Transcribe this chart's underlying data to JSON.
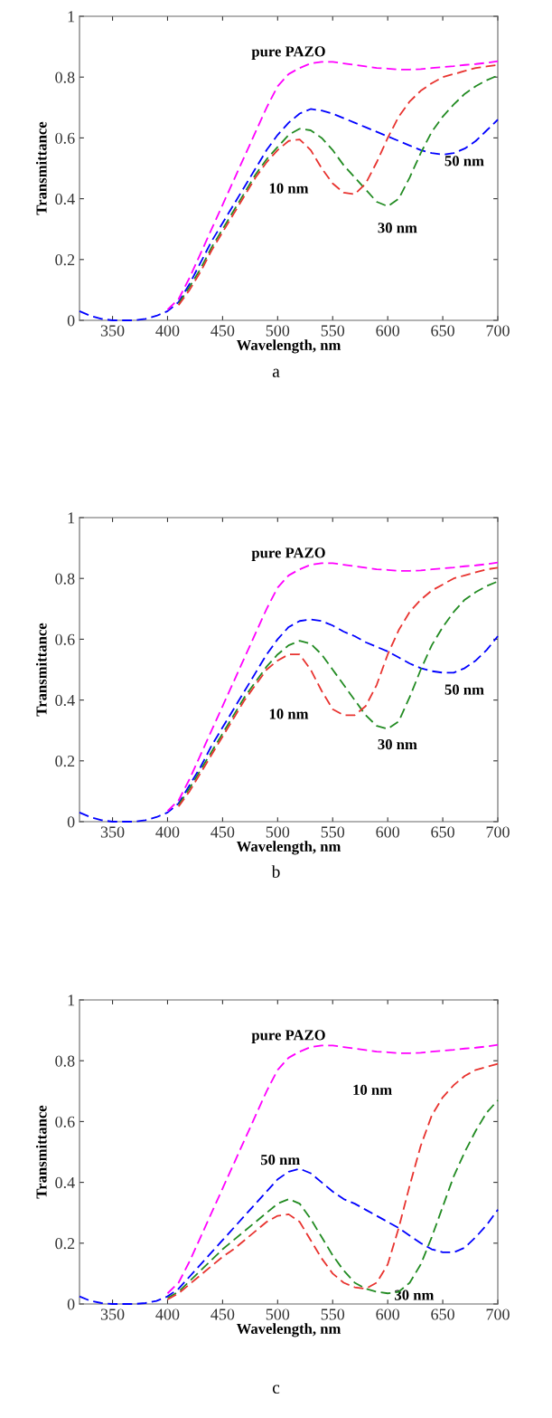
{
  "chart_data": [
    {
      "type": "line",
      "xlabel": "Wavelength, nm",
      "ylabel": "Transmittance",
      "line_style": "dashed",
      "grid": false,
      "xlim": [
        320,
        700
      ],
      "ylim": [
        0,
        1
      ],
      "xticks": [
        350,
        400,
        450,
        500,
        550,
        600,
        650,
        700
      ],
      "yticks": [
        0,
        0.2,
        0.4,
        0.6,
        0.8,
        1
      ],
      "x": [
        320,
        330,
        340,
        350,
        360,
        370,
        380,
        390,
        400,
        410,
        420,
        430,
        440,
        450,
        460,
        470,
        480,
        490,
        500,
        510,
        520,
        530,
        540,
        550,
        560,
        570,
        580,
        590,
        600,
        610,
        620,
        630,
        640,
        650,
        660,
        670,
        680,
        690,
        700
      ],
      "series": [
        {
          "color": "#ff00ff",
          "values": [
            null,
            null,
            null,
            null,
            null,
            null,
            null,
            null,
            0.035,
            0.07,
            0.14,
            0.22,
            0.3,
            0.38,
            0.46,
            0.54,
            0.62,
            0.7,
            0.77,
            0.81,
            0.83,
            0.845,
            0.85,
            0.85,
            0.845,
            0.84,
            0.835,
            0.83,
            0.828,
            0.825,
            0.825,
            0.826,
            0.83,
            0.833,
            0.836,
            0.84,
            0.843,
            0.847,
            0.852
          ]
        },
        {
          "color": "#228b22",
          "values": [
            null,
            null,
            null,
            null,
            null,
            null,
            null,
            null,
            null,
            0.055,
            0.11,
            0.17,
            0.24,
            0.3,
            0.36,
            0.42,
            0.48,
            0.53,
            0.57,
            0.61,
            0.63,
            0.625,
            0.6,
            0.56,
            0.51,
            0.47,
            0.43,
            0.39,
            0.375,
            0.4,
            0.47,
            0.55,
            0.62,
            0.67,
            0.71,
            0.745,
            0.77,
            0.79,
            0.805
          ]
        },
        {
          "color": "#e8332f",
          "values": [
            null,
            null,
            null,
            null,
            null,
            null,
            null,
            null,
            null,
            0.05,
            0.1,
            0.16,
            0.23,
            0.29,
            0.35,
            0.41,
            0.47,
            0.52,
            0.56,
            0.59,
            0.595,
            0.56,
            0.5,
            0.45,
            0.42,
            0.415,
            0.45,
            0.52,
            0.6,
            0.67,
            0.72,
            0.755,
            0.78,
            0.8,
            0.81,
            0.82,
            0.83,
            0.835,
            0.84
          ]
        },
        {
          "color": "#0000ff",
          "values": [
            0.03,
            0.015,
            0.005,
            0,
            0,
            0,
            0.005,
            0.015,
            0.03,
            0.06,
            0.12,
            0.19,
            0.26,
            0.32,
            0.38,
            0.44,
            0.5,
            0.56,
            0.61,
            0.65,
            0.68,
            0.695,
            0.69,
            0.68,
            0.665,
            0.65,
            0.635,
            0.62,
            0.605,
            0.59,
            0.575,
            0.56,
            0.55,
            0.545,
            0.55,
            0.565,
            0.59,
            0.625,
            0.66
          ]
        }
      ],
      "annotations": [
        "pure PAZO",
        "10 nm",
        "30 nm",
        "50 nm",
        "a"
      ]
    },
    {
      "type": "line",
      "xlabel": "Wavelength, nm",
      "ylabel": "Transmittance",
      "line_style": "dashed",
      "grid": false,
      "xlim": [
        320,
        700
      ],
      "ylim": [
        0,
        1
      ],
      "xticks": [
        350,
        400,
        450,
        500,
        550,
        600,
        650,
        700
      ],
      "yticks": [
        0,
        0.2,
        0.4,
        0.6,
        0.8,
        1
      ],
      "x": [
        320,
        330,
        340,
        350,
        360,
        370,
        380,
        390,
        400,
        410,
        420,
        430,
        440,
        450,
        460,
        470,
        480,
        490,
        500,
        510,
        520,
        530,
        540,
        550,
        560,
        570,
        580,
        590,
        600,
        610,
        620,
        630,
        640,
        650,
        660,
        670,
        680,
        690,
        700
      ],
      "series": [
        {
          "color": "#ff00ff",
          "values": [
            null,
            null,
            null,
            null,
            null,
            null,
            null,
            null,
            0.035,
            0.07,
            0.14,
            0.22,
            0.3,
            0.38,
            0.46,
            0.54,
            0.62,
            0.7,
            0.77,
            0.81,
            0.83,
            0.845,
            0.85,
            0.85,
            0.845,
            0.84,
            0.835,
            0.83,
            0.828,
            0.825,
            0.825,
            0.826,
            0.83,
            0.833,
            0.836,
            0.84,
            0.843,
            0.847,
            0.852
          ]
        },
        {
          "color": "#228b22",
          "values": [
            null,
            null,
            null,
            null,
            null,
            null,
            null,
            null,
            null,
            0.055,
            0.11,
            0.17,
            0.23,
            0.29,
            0.35,
            0.41,
            0.46,
            0.51,
            0.55,
            0.58,
            0.595,
            0.585,
            0.55,
            0.5,
            0.45,
            0.4,
            0.35,
            0.315,
            0.305,
            0.33,
            0.41,
            0.5,
            0.58,
            0.64,
            0.69,
            0.73,
            0.755,
            0.775,
            0.79
          ]
        },
        {
          "color": "#e8332f",
          "values": [
            null,
            null,
            null,
            null,
            null,
            null,
            null,
            null,
            null,
            0.05,
            0.1,
            0.16,
            0.22,
            0.28,
            0.34,
            0.4,
            0.45,
            0.5,
            0.53,
            0.55,
            0.55,
            0.5,
            0.43,
            0.37,
            0.35,
            0.35,
            0.38,
            0.45,
            0.55,
            0.63,
            0.69,
            0.73,
            0.76,
            0.78,
            0.8,
            0.81,
            0.82,
            0.83,
            0.835
          ]
        },
        {
          "color": "#0000ff",
          "values": [
            0.03,
            0.015,
            0.005,
            0,
            0,
            0,
            0.005,
            0.015,
            0.03,
            0.06,
            0.12,
            0.18,
            0.25,
            0.31,
            0.37,
            0.43,
            0.49,
            0.55,
            0.6,
            0.64,
            0.66,
            0.665,
            0.66,
            0.645,
            0.625,
            0.61,
            0.59,
            0.575,
            0.56,
            0.54,
            0.52,
            0.505,
            0.495,
            0.49,
            0.49,
            0.505,
            0.53,
            0.565,
            0.61
          ]
        }
      ],
      "annotations": [
        "pure PAZO",
        "10 nm",
        "30 nm",
        "50 nm",
        "b"
      ]
    },
    {
      "type": "line",
      "xlabel": "Wavelength, nm",
      "ylabel": "Transmittance",
      "line_style": "dashed",
      "grid": false,
      "xlim": [
        320,
        700
      ],
      "ylim": [
        0,
        1
      ],
      "xticks": [
        350,
        400,
        450,
        500,
        550,
        600,
        650,
        700
      ],
      "yticks": [
        0,
        0.2,
        0.4,
        0.6,
        0.8,
        1
      ],
      "x": [
        320,
        330,
        340,
        350,
        360,
        370,
        380,
        390,
        400,
        410,
        420,
        430,
        440,
        450,
        460,
        470,
        480,
        490,
        500,
        510,
        520,
        530,
        540,
        550,
        560,
        570,
        580,
        590,
        600,
        610,
        620,
        630,
        640,
        650,
        660,
        670,
        680,
        690,
        700
      ],
      "series": [
        {
          "color": "#ff00ff",
          "values": [
            null,
            null,
            null,
            null,
            null,
            null,
            null,
            null,
            0.035,
            0.07,
            0.14,
            0.22,
            0.3,
            0.38,
            0.46,
            0.54,
            0.62,
            0.7,
            0.77,
            0.81,
            0.83,
            0.845,
            0.85,
            0.85,
            0.845,
            0.84,
            0.835,
            0.83,
            0.828,
            0.825,
            0.825,
            0.826,
            0.83,
            0.833,
            0.836,
            0.84,
            0.843,
            0.847,
            0.852
          ]
        },
        {
          "color": "#228b22",
          "values": [
            null,
            null,
            null,
            null,
            null,
            null,
            null,
            null,
            0.02,
            0.04,
            0.075,
            0.11,
            0.145,
            0.18,
            0.21,
            0.24,
            0.27,
            0.3,
            0.33,
            0.345,
            0.33,
            0.28,
            0.22,
            0.16,
            0.11,
            0.07,
            0.05,
            0.04,
            0.035,
            0.04,
            0.07,
            0.13,
            0.22,
            0.32,
            0.42,
            0.5,
            0.57,
            0.63,
            0.67
          ]
        },
        {
          "color": "#e8332f",
          "values": [
            null,
            null,
            null,
            null,
            null,
            null,
            null,
            null,
            0.015,
            0.035,
            0.065,
            0.095,
            0.125,
            0.155,
            0.18,
            0.21,
            0.24,
            0.27,
            0.29,
            0.295,
            0.27,
            0.21,
            0.15,
            0.1,
            0.07,
            0.055,
            0.05,
            0.07,
            0.13,
            0.25,
            0.39,
            0.52,
            0.62,
            0.68,
            0.72,
            0.75,
            0.77,
            0.78,
            0.79
          ]
        },
        {
          "color": "#0000ff",
          "values": [
            0.025,
            0.01,
            0.003,
            0,
            0,
            0,
            0.003,
            0.01,
            0.025,
            0.05,
            0.09,
            0.13,
            0.17,
            0.21,
            0.25,
            0.29,
            0.33,
            0.37,
            0.41,
            0.435,
            0.445,
            0.43,
            0.4,
            0.37,
            0.345,
            0.33,
            0.31,
            0.29,
            0.27,
            0.25,
            0.225,
            0.2,
            0.18,
            0.17,
            0.17,
            0.185,
            0.22,
            0.26,
            0.31
          ]
        }
      ],
      "annotations": [
        "pure PAZO",
        "10 nm",
        "50 nm",
        "30 nm",
        "c"
      ]
    }
  ]
}
